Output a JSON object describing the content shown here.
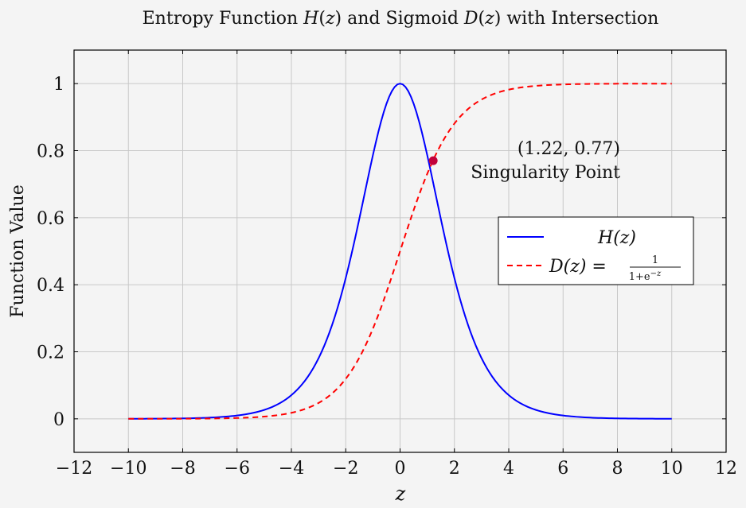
{
  "chart_data": {
    "type": "line",
    "title": {
      "prefix": "Entropy Function ",
      "h_sym": "H",
      "mid": "(",
      "arg": "z",
      "close": ")",
      "conj": " and Sigmoid ",
      "d_sym": "D",
      "suffix": " with Intersection"
    },
    "xlabel": "z",
    "ylabel": "Function Value",
    "xlim": [
      -12,
      12
    ],
    "ylim": [
      -0.1,
      1.1
    ],
    "xticks": [
      -12,
      -10,
      -8,
      -6,
      -4,
      -2,
      0,
      2,
      4,
      6,
      8,
      10,
      12
    ],
    "yticks": [
      0,
      0.2,
      0.4,
      0.6,
      0.8,
      1
    ],
    "grid": true,
    "legend_position": "center-right",
    "series": [
      {
        "name": "H(z)",
        "color": "#0000ff",
        "dash": "solid",
        "x_range": [
          -10,
          10
        ],
        "samples": 201,
        "values_sample": [
          [
            -10,
            0.0002
          ],
          [
            -6,
            0.0098
          ],
          [
            -4,
            0.0707
          ],
          [
            -2,
            0.42
          ],
          [
            0,
            1.0
          ],
          [
            2,
            0.42
          ],
          [
            4,
            0.0707
          ],
          [
            6,
            0.0098
          ],
          [
            10,
            0.0002
          ]
        ]
      },
      {
        "name": "D(z) = 1/(1+e^{-z})",
        "color": "#ff0000",
        "dash": "dashed",
        "x_range": [
          -10,
          10
        ],
        "samples": 201,
        "values_sample": [
          [
            -10,
            0.0
          ],
          [
            -6,
            0.0025
          ],
          [
            -4,
            0.018
          ],
          [
            -2,
            0.1192
          ],
          [
            0,
            0.5
          ],
          [
            2,
            0.8808
          ],
          [
            4,
            0.982
          ],
          [
            6,
            0.9975
          ],
          [
            10,
            1.0
          ]
        ]
      }
    ],
    "intersection": {
      "x": 1.22,
      "y": 0.77,
      "color": "#c2003a"
    },
    "annotation": {
      "coords": "(1.22, 0.77)",
      "label": "Singularity Point"
    },
    "legend": {
      "h_label": "H(z)",
      "d_label_lhs": "D(z) =",
      "d_num": "1",
      "d_den": "1+e",
      "d_den_exp": "−z"
    }
  }
}
